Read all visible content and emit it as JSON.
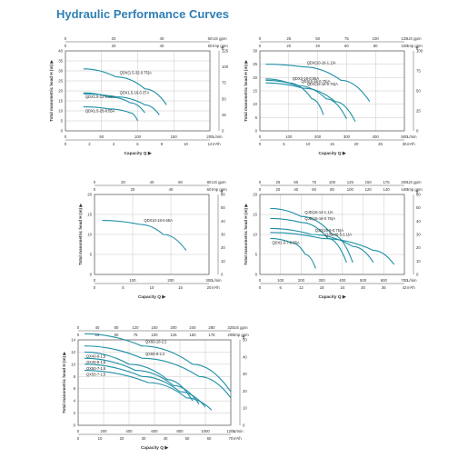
{
  "page_title": "Hydraulic Performance Curves",
  "colors": {
    "title": "#2f7fb4",
    "curve": "#1f8fa6",
    "grid": "#c8c8c8",
    "axis": "#555555",
    "text": "#333333"
  },
  "chart_data": [
    {
      "type": "line",
      "top_unit1": "US gpm",
      "top_unit2": "Imp gpm",
      "top_ticks1": [
        "0",
        "20",
        "40",
        "60"
      ],
      "top_ticks2": [
        "0",
        "20",
        "40",
        "50"
      ],
      "bottom_unit1": "L/min",
      "bottom_unit2": "m³/h",
      "bottom_ticks1": [
        "0",
        "50",
        "100",
        "150",
        "200"
      ],
      "bottom_ticks2": [
        "0",
        "2",
        "4",
        "6",
        "8",
        "10",
        "12"
      ],
      "ylabel_left": "Total manometric head H (m)",
      "yticks_left": [
        "0",
        "5",
        "10",
        "15",
        "20",
        "25",
        "30",
        "35",
        "40"
      ],
      "yunit_right": "ft",
      "yticks_right": [
        "0",
        "25",
        "50",
        "75",
        "100",
        "125"
      ],
      "xlabel": "Capacity Q",
      "xlim": [
        0,
        200
      ],
      "ylim": [
        0,
        40
      ],
      "series": [
        {
          "name": "QDX(1.5-32-0.75)A",
          "label_pos": "right",
          "x": [
            25,
            70,
            110,
            140
          ],
          "y": [
            31,
            27,
            21,
            13
          ]
        },
        {
          "name": "QDX1.5-12-0.25A",
          "label_pos": "left",
          "x": [
            25,
            60,
            90,
            110
          ],
          "y": [
            19,
            17,
            14,
            9
          ]
        },
        {
          "name": "QDX1.5-16-0.37A",
          "label_pos": "right",
          "x": [
            25,
            70,
            110,
            130
          ],
          "y": [
            18.5,
            17,
            13,
            8
          ]
        },
        {
          "name": "QDX1.5-25-0.55A",
          "label_pos": "left",
          "x": [
            25,
            60,
            90,
            100
          ],
          "y": [
            12,
            11,
            9,
            5
          ]
        }
      ]
    },
    {
      "type": "line",
      "top_unit1": "US gpm",
      "top_unit2": "Imp gpm",
      "top_ticks1": [
        "0",
        "25",
        "50",
        "75",
        "100",
        "125"
      ],
      "top_ticks2": [
        "0",
        "20",
        "40",
        "60",
        "80",
        "100"
      ],
      "bottom_unit1": "L/min",
      "bottom_unit2": "m³/h",
      "bottom_ticks1": [
        "0",
        "100",
        "200",
        "300",
        "400",
        "500"
      ],
      "bottom_ticks2": [
        "0",
        "5",
        "10",
        "15",
        "20",
        "25",
        "30"
      ],
      "ylabel_left": "Total manometric head H (m)",
      "yticks_left": [
        "0",
        "5",
        "10",
        "15",
        "20",
        "25",
        "30"
      ],
      "yunit_right": "ft",
      "yticks_right": [
        "0",
        "25",
        "50",
        "75",
        "100"
      ],
      "xlabel": "Capacity Q",
      "xlim": [
        0,
        500
      ],
      "ylim": [
        0,
        30
      ],
      "series": [
        {
          "name": "QDX(10-16-1.1)A",
          "label_pos": "right",
          "x": [
            20,
            150,
            280,
            380
          ],
          "y": [
            25,
            24,
            19,
            11
          ]
        },
        {
          "name": "QDX3-18-0.55A",
          "label_pos": "right",
          "x": [
            20,
            100,
            180,
            220
          ],
          "y": [
            19.5,
            18,
            12,
            6
          ]
        },
        {
          "name": "QDX(6-16-0.75)A",
          "label_pos": "right",
          "x": [
            20,
            130,
            230,
            300
          ],
          "y": [
            19,
            17,
            12,
            4.5
          ]
        },
        {
          "name": "QDX(16-16-0.75)A",
          "label_pos": "right",
          "x": [
            20,
            150,
            260,
            330
          ],
          "y": [
            18,
            16,
            11,
            3.5
          ]
        }
      ]
    },
    {
      "type": "line",
      "top_unit1": "US gpm",
      "top_unit2": "Imp gpm",
      "top_ticks1": [
        "0",
        "20",
        "40",
        "60",
        "80"
      ],
      "top_ticks2": [
        "0",
        "20",
        "40",
        "60"
      ],
      "bottom_unit1": "L/min",
      "bottom_unit2": "m³/h",
      "bottom_ticks1": [
        "0",
        "100",
        "200",
        "300"
      ],
      "bottom_ticks2": [
        "0",
        "5",
        "10",
        "15",
        "20"
      ],
      "ylabel_left": "Total manometric head H (m)",
      "yticks_left": [
        "0",
        "5",
        "10",
        "15",
        "20"
      ],
      "yunit_right": "ft",
      "yticks_right": [
        "0",
        "10",
        "20",
        "30",
        "40",
        "50",
        "60"
      ],
      "xlabel": "Capacity Q",
      "xlim": [
        0,
        300
      ],
      "ylim": [
        0,
        20
      ],
      "series": [
        {
          "name": "QDX10-18-0.55A",
          "label_pos": "right",
          "x": [
            20,
            120,
            180,
            240
          ],
          "y": [
            13.5,
            12.5,
            10,
            6
          ]
        }
      ]
    },
    {
      "type": "line",
      "top_unit1": "US gpm",
      "top_unit2": "Imp gpm",
      "top_ticks1": [
        "0",
        "25",
        "50",
        "75",
        "100",
        "125",
        "150",
        "175",
        "200"
      ],
      "top_ticks2": [
        "0",
        "20",
        "40",
        "60",
        "80",
        "100",
        "120",
        "140",
        "160"
      ],
      "bottom_unit1": "L/min",
      "bottom_unit2": "m³/h",
      "bottom_ticks1": [
        "0",
        "100",
        "200",
        "300",
        "400",
        "500",
        "600",
        "700"
      ],
      "bottom_ticks2": [
        "0",
        "6",
        "12",
        "18",
        "24",
        "30",
        "36",
        "42"
      ],
      "ylabel_left": "Total manometric head H (m)",
      "yticks_left": [
        "0",
        "5",
        "10",
        "15",
        "20"
      ],
      "yunit_right": "ft",
      "yticks_right": [
        "0",
        "10",
        "20",
        "30",
        "40",
        "50",
        "60"
      ],
      "xlabel": "Capacity Q",
      "xlim": [
        0,
        700
      ],
      "ylim": [
        0,
        20
      ],
      "series": [
        {
          "name": "QJD(15-14-1.1)A",
          "label_pos": "right",
          "x": [
            50,
            200,
            350,
            450
          ],
          "y": [
            16.5,
            14.5,
            10,
            3
          ]
        },
        {
          "name": "QJD(15-16-0.75)A",
          "label_pos": "right",
          "x": [
            50,
            200,
            330,
            420
          ],
          "y": [
            14,
            13,
            9,
            3
          ]
        },
        {
          "name": "QJD(25-8-0.75)A",
          "label_pos": "right",
          "x": [
            50,
            250,
            450,
            550
          ],
          "y": [
            11.5,
            10,
            7,
            3
          ]
        },
        {
          "name": "QJD(40-5-1.1)A",
          "label_pos": "right",
          "x": [
            50,
            300,
            550,
            650
          ],
          "y": [
            10.5,
            9,
            6,
            2.5
          ]
        },
        {
          "name": "QDX1.5-7-0.55A",
          "label_pos": "left",
          "x": [
            50,
            150,
            220,
            270
          ],
          "y": [
            9,
            8,
            5,
            1.5
          ]
        }
      ]
    },
    {
      "type": "line",
      "top_unit1": "US gpm",
      "top_unit2": "Imp gpm",
      "top_ticks1": [
        "0",
        "40",
        "80",
        "120",
        "160",
        "200",
        "240",
        "280",
        "320"
      ],
      "top_ticks2": [
        "0",
        "25",
        "50",
        "75",
        "100",
        "125",
        "150",
        "175",
        "200"
      ],
      "bottom_unit1": "L/min",
      "bottom_unit2": "m³/h",
      "bottom_ticks1": [
        "0",
        "200",
        "400",
        "600",
        "800",
        "1000",
        "1200"
      ],
      "bottom_ticks2": [
        "0",
        "10",
        "20",
        "30",
        "40",
        "50",
        "60",
        "70"
      ],
      "ylabel_left": "Total manometric head H (m)",
      "yticks_left": [
        "0",
        "2",
        "4",
        "6",
        "8",
        "10",
        "12",
        "14"
      ],
      "yunit_right": "ft",
      "yticks_right": [
        "0",
        "10",
        "20",
        "30",
        "40",
        "50"
      ],
      "xlabel": "Capacity Q",
      "xlim": [
        0,
        1200
      ],
      "ylim": [
        0,
        14
      ],
      "series": [
        {
          "name": "QX60-10-2.2",
          "label_pos": "right",
          "x": [
            50,
            500,
            900,
            1200
          ],
          "y": [
            15,
            13,
            10,
            5.5
          ]
        },
        {
          "name": "QX65-8-2.2",
          "label_pos": "right",
          "x": [
            50,
            500,
            950,
            1200
          ],
          "y": [
            13,
            11,
            8,
            4.5
          ]
        },
        {
          "name": "QX40-9-1.5",
          "label_pos": "left",
          "x": [
            50,
            400,
            700,
            900
          ],
          "y": [
            12,
            10,
            7.5,
            4
          ]
        },
        {
          "name": "QX45-8-1.5",
          "label_pos": "left",
          "x": [
            50,
            450,
            750,
            950
          ],
          "y": [
            11,
            9,
            6.5,
            3.5
          ]
        },
        {
          "name": "QX50-7-1.5",
          "label_pos": "left",
          "x": [
            50,
            500,
            800,
            1000
          ],
          "y": [
            10,
            8,
            5.5,
            3
          ]
        },
        {
          "name": "QX55-7-1.5",
          "label_pos": "left",
          "x": [
            50,
            550,
            850,
            1050
          ],
          "y": [
            9,
            7,
            4.5,
            2.5
          ]
        }
      ]
    }
  ]
}
